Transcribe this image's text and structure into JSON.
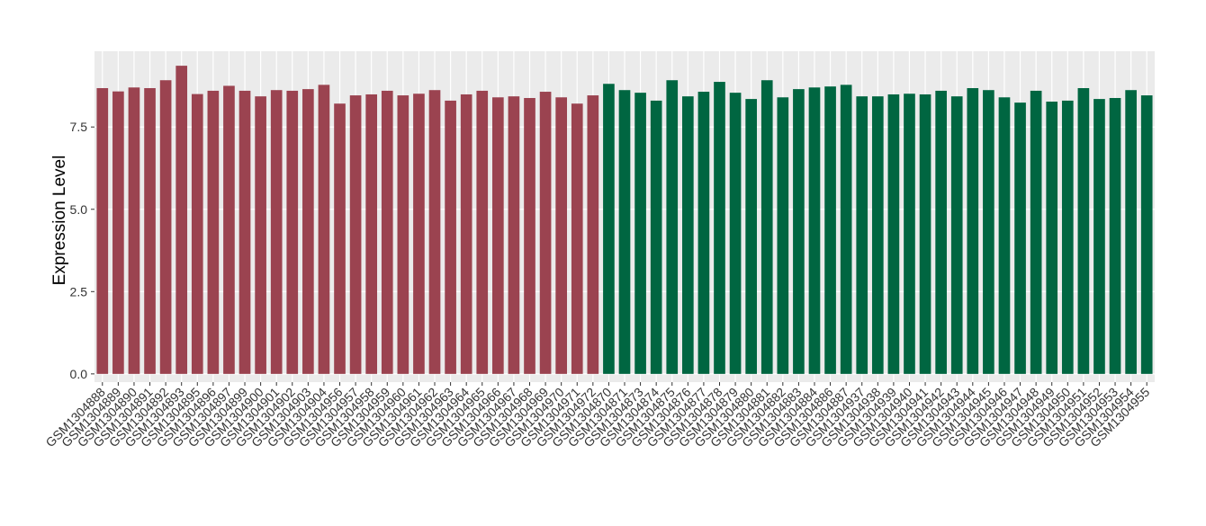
{
  "chart_data": {
    "type": "bar",
    "y_label": "Expression Level",
    "categories": [
      "GSM1304888",
      "GSM1304889",
      "GSM1304890",
      "GSM1304891",
      "GSM1304892",
      "GSM1304893",
      "GSM1304895",
      "GSM1304896",
      "GSM1304897",
      "GSM1304899",
      "GSM1304900",
      "GSM1304901",
      "GSM1304902",
      "GSM1304903",
      "GSM1304904",
      "GSM1304956",
      "GSM1304957",
      "GSM1304958",
      "GSM1304959",
      "GSM1304960",
      "GSM1304961",
      "GSM1304962",
      "GSM1304963",
      "GSM1304964",
      "GSM1304965",
      "GSM1304966",
      "GSM1304967",
      "GSM1304968",
      "GSM1304969",
      "GSM1304970",
      "GSM1304971",
      "GSM1304972",
      "GSM1304870",
      "GSM1304871",
      "GSM1304873",
      "GSM1304874",
      "GSM1304875",
      "GSM1304876",
      "GSM1304877",
      "GSM1304878",
      "GSM1304879",
      "GSM1304880",
      "GSM1304881",
      "GSM1304882",
      "GSM1304883",
      "GSM1304884",
      "GSM1304886",
      "GSM1304887",
      "GSM1304937",
      "GSM1304938",
      "GSM1304939",
      "GSM1304940",
      "GSM1304941",
      "GSM1304942",
      "GSM1304943",
      "GSM1304944",
      "GSM1304945",
      "GSM1304946",
      "GSM1304947",
      "GSM1304948",
      "GSM1304949",
      "GSM1304950",
      "GSM1304951",
      "GSM1304952",
      "GSM1304953",
      "GSM1304954",
      "GSM1304955"
    ],
    "values": [
      8.68,
      8.58,
      8.7,
      8.68,
      8.92,
      9.36,
      8.5,
      8.6,
      8.75,
      8.6,
      8.43,
      8.62,
      8.6,
      8.65,
      8.78,
      8.21,
      8.46,
      8.49,
      8.6,
      8.46,
      8.51,
      8.62,
      8.3,
      8.49,
      8.6,
      8.4,
      8.43,
      8.38,
      8.57,
      8.4,
      8.21,
      8.46,
      8.81,
      8.62,
      8.54,
      8.3,
      8.92,
      8.43,
      8.57,
      8.87,
      8.54,
      8.35,
      8.92,
      8.4,
      8.65,
      8.7,
      8.73,
      8.78,
      8.43,
      8.43,
      8.49,
      8.51,
      8.49,
      8.6,
      8.43,
      8.68,
      8.62,
      8.4,
      8.24,
      8.6,
      8.27,
      8.3,
      8.68,
      8.35,
      8.38,
      8.62,
      8.46
    ],
    "colors": [
      "#9b4350",
      "#9b4350",
      "#9b4350",
      "#9b4350",
      "#9b4350",
      "#9b4350",
      "#9b4350",
      "#9b4350",
      "#9b4350",
      "#9b4350",
      "#9b4350",
      "#9b4350",
      "#9b4350",
      "#9b4350",
      "#9b4350",
      "#9b4350",
      "#9b4350",
      "#9b4350",
      "#9b4350",
      "#9b4350",
      "#9b4350",
      "#9b4350",
      "#9b4350",
      "#9b4350",
      "#9b4350",
      "#9b4350",
      "#9b4350",
      "#9b4350",
      "#9b4350",
      "#9b4350",
      "#9b4350",
      "#9b4350",
      "#006641",
      "#006641",
      "#006641",
      "#006641",
      "#006641",
      "#006641",
      "#006641",
      "#006641",
      "#006641",
      "#006641",
      "#006641",
      "#006641",
      "#006641",
      "#006641",
      "#006641",
      "#006641",
      "#006641",
      "#006641",
      "#006641",
      "#006641",
      "#006641",
      "#006641",
      "#006641",
      "#006641",
      "#006641",
      "#006641",
      "#006641",
      "#006641",
      "#006641",
      "#006641",
      "#006641",
      "#006641",
      "#006641",
      "#006641",
      "#006641"
    ],
    "ylim": [
      -0.25,
      9.8
    ],
    "yticks": [
      {
        "value": 0,
        "label": "0.0"
      },
      2.5,
      {
        "value": 5,
        "label": "5.0"
      },
      7.5
    ],
    "grid": true
  }
}
